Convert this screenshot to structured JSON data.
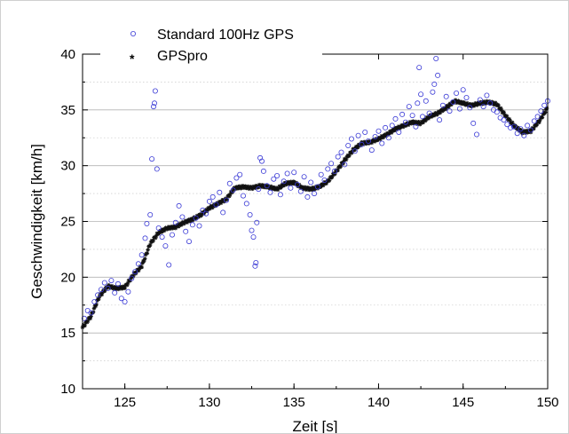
{
  "chart_data": {
    "type": "scatter",
    "title": "",
    "xlabel": "Zeit [s]",
    "ylabel": "Geschwindigkeit [km/h]",
    "xlim": [
      122.5,
      150
    ],
    "ylim": [
      10,
      40
    ],
    "xticks": [
      125,
      130,
      135,
      140,
      145,
      150
    ],
    "yticks": [
      10,
      15,
      20,
      25,
      30,
      35,
      40
    ],
    "grid": "horizontal-dotted",
    "legend_position": "top-left",
    "series": [
      {
        "name": "Standard 100Hz GPS",
        "marker": "open-circle",
        "color": "#3b3bd6",
        "points": [
          [
            122.6,
            16.3
          ],
          [
            122.8,
            17.0
          ],
          [
            123.0,
            16.8
          ],
          [
            123.2,
            17.8
          ],
          [
            123.4,
            18.4
          ],
          [
            123.6,
            18.9
          ],
          [
            123.8,
            19.5
          ],
          [
            124.0,
            19.0
          ],
          [
            124.2,
            19.7
          ],
          [
            124.4,
            18.6
          ],
          [
            124.6,
            19.4
          ],
          [
            124.8,
            18.1
          ],
          [
            125.0,
            17.8
          ],
          [
            125.2,
            18.7
          ],
          [
            125.4,
            19.9
          ],
          [
            125.6,
            20.5
          ],
          [
            125.8,
            21.2
          ],
          [
            126.0,
            22.0
          ],
          [
            126.2,
            23.5
          ],
          [
            126.3,
            24.8
          ],
          [
            126.5,
            25.6
          ],
          [
            126.6,
            30.6
          ],
          [
            126.7,
            35.3
          ],
          [
            126.75,
            35.6
          ],
          [
            126.8,
            36.7
          ],
          [
            126.9,
            29.7
          ],
          [
            127.0,
            24.4
          ],
          [
            127.2,
            23.6
          ],
          [
            127.4,
            22.8
          ],
          [
            127.6,
            21.1
          ],
          [
            127.8,
            23.8
          ],
          [
            128.0,
            24.9
          ],
          [
            128.2,
            26.4
          ],
          [
            128.4,
            25.4
          ],
          [
            128.6,
            24.1
          ],
          [
            128.8,
            23.2
          ],
          [
            129.0,
            24.7
          ],
          [
            129.2,
            25.3
          ],
          [
            129.4,
            24.6
          ],
          [
            129.6,
            26.0
          ],
          [
            129.8,
            25.7
          ],
          [
            130.0,
            26.8
          ],
          [
            130.2,
            27.2
          ],
          [
            130.4,
            26.5
          ],
          [
            130.6,
            27.6
          ],
          [
            130.8,
            25.8
          ],
          [
            131.0,
            26.9
          ],
          [
            131.2,
            28.4
          ],
          [
            131.4,
            27.8
          ],
          [
            131.6,
            28.9
          ],
          [
            131.8,
            29.2
          ],
          [
            132.0,
            27.3
          ],
          [
            132.2,
            26.6
          ],
          [
            132.4,
            25.6
          ],
          [
            132.5,
            24.2
          ],
          [
            132.6,
            23.6
          ],
          [
            132.7,
            21.0
          ],
          [
            132.75,
            21.3
          ],
          [
            132.8,
            24.9
          ],
          [
            132.9,
            27.9
          ],
          [
            133.0,
            30.7
          ],
          [
            133.1,
            30.4
          ],
          [
            133.2,
            29.5
          ],
          [
            133.4,
            28.2
          ],
          [
            133.6,
            27.6
          ],
          [
            133.8,
            28.8
          ],
          [
            134.0,
            29.1
          ],
          [
            134.2,
            27.4
          ],
          [
            134.4,
            28.6
          ],
          [
            134.6,
            29.3
          ],
          [
            134.8,
            28.0
          ],
          [
            135.0,
            29.4
          ],
          [
            135.2,
            28.3
          ],
          [
            135.4,
            27.7
          ],
          [
            135.6,
            29.0
          ],
          [
            135.8,
            27.2
          ],
          [
            136.0,
            28.5
          ],
          [
            136.2,
            27.5
          ],
          [
            136.4,
            28.1
          ],
          [
            136.6,
            29.2
          ],
          [
            136.8,
            28.7
          ],
          [
            137.0,
            29.7
          ],
          [
            137.2,
            30.2
          ],
          [
            137.4,
            29.5
          ],
          [
            137.6,
            30.8
          ],
          [
            137.8,
            31.2
          ],
          [
            138.0,
            30.1
          ],
          [
            138.2,
            31.8
          ],
          [
            138.4,
            32.4
          ],
          [
            138.6,
            31.3
          ],
          [
            138.8,
            32.7
          ],
          [
            139.0,
            31.9
          ],
          [
            139.2,
            33.0
          ],
          [
            139.4,
            32.2
          ],
          [
            139.6,
            31.4
          ],
          [
            139.8,
            32.6
          ],
          [
            140.0,
            33.1
          ],
          [
            140.2,
            32.0
          ],
          [
            140.4,
            33.4
          ],
          [
            140.6,
            32.5
          ],
          [
            140.8,
            33.6
          ],
          [
            141.0,
            34.2
          ],
          [
            141.2,
            33.0
          ],
          [
            141.4,
            34.6
          ],
          [
            141.6,
            33.9
          ],
          [
            141.8,
            35.3
          ],
          [
            142.0,
            34.5
          ],
          [
            142.2,
            33.5
          ],
          [
            142.3,
            35.6
          ],
          [
            142.4,
            38.8
          ],
          [
            142.5,
            36.4
          ],
          [
            142.6,
            34.4
          ],
          [
            142.8,
            35.8
          ],
          [
            143.0,
            34.7
          ],
          [
            143.2,
            36.6
          ],
          [
            143.3,
            37.3
          ],
          [
            143.4,
            39.6
          ],
          [
            143.5,
            38.1
          ],
          [
            143.6,
            34.1
          ],
          [
            143.8,
            35.4
          ],
          [
            144.0,
            36.2
          ],
          [
            144.2,
            34.9
          ],
          [
            144.4,
            35.7
          ],
          [
            144.6,
            36.5
          ],
          [
            144.8,
            35.1
          ],
          [
            145.0,
            36.8
          ],
          [
            145.2,
            36.1
          ],
          [
            145.4,
            35.2
          ],
          [
            145.6,
            33.8
          ],
          [
            145.8,
            32.8
          ],
          [
            146.0,
            35.9
          ],
          [
            146.2,
            35.3
          ],
          [
            146.4,
            36.3
          ],
          [
            146.6,
            35.6
          ],
          [
            146.8,
            35.0
          ],
          [
            147.0,
            34.8
          ],
          [
            147.2,
            34.3
          ],
          [
            147.4,
            34.1
          ],
          [
            147.6,
            33.7
          ],
          [
            147.8,
            33.4
          ],
          [
            148.0,
            33.5
          ],
          [
            148.2,
            32.9
          ],
          [
            148.4,
            33.3
          ],
          [
            148.6,
            32.7
          ],
          [
            148.8,
            33.6
          ],
          [
            149.0,
            33.2
          ],
          [
            149.2,
            34.0
          ],
          [
            149.4,
            34.4
          ],
          [
            149.6,
            34.9
          ],
          [
            149.8,
            35.4
          ],
          [
            150.0,
            35.8
          ]
        ]
      },
      {
        "name": "GPSpro",
        "marker": "asterisk",
        "color": "#000000",
        "line": [
          [
            122.5,
            15.5
          ],
          [
            123.0,
            16.5
          ],
          [
            123.5,
            18.3
          ],
          [
            124.0,
            19.2
          ],
          [
            124.5,
            19.0
          ],
          [
            125.0,
            19.1
          ],
          [
            125.5,
            20.2
          ],
          [
            126.0,
            21.0
          ],
          [
            126.5,
            23.0
          ],
          [
            127.0,
            24.0
          ],
          [
            127.5,
            24.4
          ],
          [
            128.0,
            24.5
          ],
          [
            128.5,
            24.9
          ],
          [
            129.0,
            25.2
          ],
          [
            129.5,
            25.6
          ],
          [
            130.0,
            26.2
          ],
          [
            130.5,
            26.6
          ],
          [
            131.0,
            27.0
          ],
          [
            131.5,
            28.0
          ],
          [
            132.0,
            28.1
          ],
          [
            132.5,
            28.0
          ],
          [
            133.0,
            28.2
          ],
          [
            133.5,
            28.1
          ],
          [
            134.0,
            27.9
          ],
          [
            134.5,
            28.4
          ],
          [
            135.0,
            28.5
          ],
          [
            135.5,
            28.0
          ],
          [
            136.0,
            27.9
          ],
          [
            136.5,
            28.1
          ],
          [
            137.0,
            28.6
          ],
          [
            137.5,
            29.5
          ],
          [
            138.0,
            30.5
          ],
          [
            138.5,
            31.4
          ],
          [
            139.0,
            32.0
          ],
          [
            139.5,
            32.1
          ],
          [
            140.0,
            32.4
          ],
          [
            140.5,
            32.8
          ],
          [
            141.0,
            33.3
          ],
          [
            141.5,
            33.6
          ],
          [
            142.0,
            33.9
          ],
          [
            142.5,
            33.8
          ],
          [
            143.0,
            34.4
          ],
          [
            143.5,
            34.7
          ],
          [
            144.0,
            35.2
          ],
          [
            144.5,
            35.8
          ],
          [
            145.0,
            35.6
          ],
          [
            145.5,
            35.4
          ],
          [
            146.0,
            35.6
          ],
          [
            146.5,
            35.7
          ],
          [
            147.0,
            35.5
          ],
          [
            147.5,
            34.5
          ],
          [
            148.0,
            33.6
          ],
          [
            148.5,
            33.0
          ],
          [
            149.0,
            33.1
          ],
          [
            149.5,
            34.0
          ],
          [
            150.0,
            35.2
          ]
        ]
      }
    ]
  }
}
